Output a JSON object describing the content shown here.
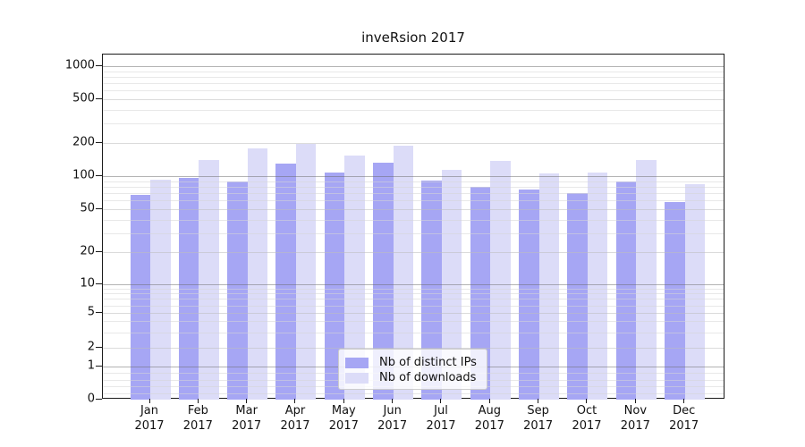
{
  "chart_data": {
    "type": "bar",
    "title": "inveRsion 2017",
    "xlabel": "",
    "ylabel": "",
    "yscale": "symlog",
    "grid": true,
    "legend_position": "lower center",
    "yticks": [
      0,
      1,
      2,
      5,
      10,
      20,
      50,
      100,
      200,
      500,
      1000
    ],
    "ylim": [
      0,
      1250
    ],
    "categories": [
      "Jan",
      "Feb",
      "Mar",
      "Apr",
      "May",
      "Jun",
      "Jul",
      "Aug",
      "Sep",
      "Oct",
      "Nov",
      "Dec"
    ],
    "xtick_year": "2017",
    "series": [
      {
        "name": "Nb of distinct IPs",
        "color": "#a6a6f4",
        "values": [
          67,
          96,
          90,
          130,
          108,
          132,
          91,
          80,
          75,
          70,
          90,
          58
        ]
      },
      {
        "name": "Nb of downloads",
        "color": "#dcdcf8",
        "values": [
          93,
          140,
          180,
          195,
          155,
          190,
          114,
          138,
          105,
          107,
          140,
          85
        ]
      }
    ]
  }
}
